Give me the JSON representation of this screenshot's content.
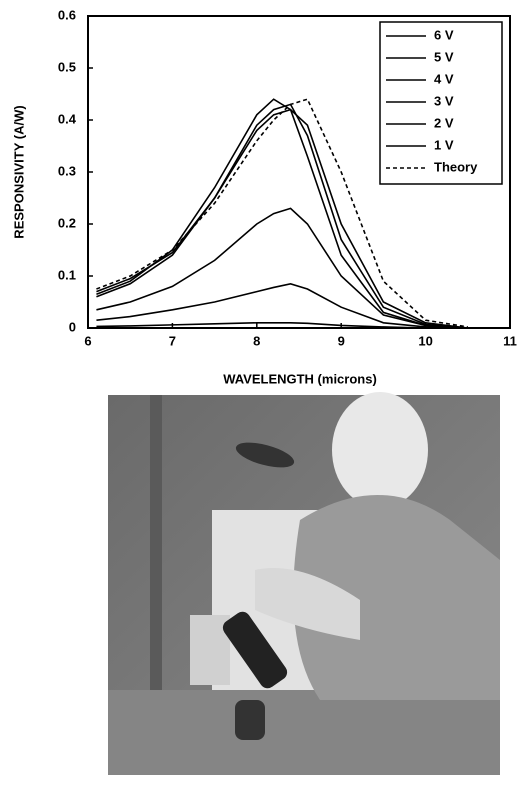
{
  "chart_data": {
    "type": "line",
    "xlabel": "WAVELENGTH (microns)",
    "ylabel": "RESPONSIVITY (A/W)",
    "x": [
      6.1,
      6.5,
      7,
      7.5,
      8,
      8.2,
      8.4,
      8.6,
      9,
      9.5,
      10,
      10.5
    ],
    "xlim": [
      6,
      11
    ],
    "xticks": [
      6,
      7,
      8,
      9,
      10,
      11
    ],
    "ylim": [
      0,
      0.6
    ],
    "yticks": [
      0,
      0.1,
      0.2,
      0.3,
      0.4,
      0.5,
      0.6
    ],
    "legend": "upper right",
    "series": [
      {
        "name": "6 V",
        "color": "#000000",
        "style": "solid",
        "values": [
          0.065,
          0.09,
          0.15,
          0.27,
          0.41,
          0.44,
          0.42,
          0.33,
          0.14,
          0.03,
          0.005,
          0
        ]
      },
      {
        "name": "5 V",
        "color": "#000000",
        "style": "solid",
        "values": [
          0.06,
          0.085,
          0.14,
          0.25,
          0.39,
          0.42,
          0.43,
          0.37,
          0.17,
          0.04,
          0.007,
          0
        ]
      },
      {
        "name": "4 V",
        "color": "#000000",
        "style": "solid",
        "values": [
          0.07,
          0.095,
          0.145,
          0.25,
          0.38,
          0.41,
          0.42,
          0.39,
          0.2,
          0.05,
          0.01,
          0
        ]
      },
      {
        "name": "3 V",
        "color": "#000000",
        "style": "solid",
        "values": [
          0.035,
          0.05,
          0.08,
          0.13,
          0.2,
          0.22,
          0.23,
          0.2,
          0.1,
          0.025,
          0.005,
          0
        ]
      },
      {
        "name": "2 V",
        "color": "#000000",
        "style": "solid",
        "values": [
          0.015,
          0.022,
          0.035,
          0.05,
          0.07,
          0.078,
          0.085,
          0.075,
          0.04,
          0.01,
          0.002,
          0
        ]
      },
      {
        "name": "1 V",
        "color": "#000000",
        "style": "solid",
        "values": [
          0.003,
          0.004,
          0.006,
          0.008,
          0.01,
          0.01,
          0.01,
          0.009,
          0.005,
          0.002,
          0,
          0
        ]
      },
      {
        "name": "Theory",
        "color": "#000000",
        "style": "dashed",
        "values": [
          0.075,
          0.1,
          0.15,
          0.24,
          0.36,
          0.4,
          0.43,
          0.44,
          0.3,
          0.09,
          0.015,
          0.002
        ]
      }
    ]
  }
}
